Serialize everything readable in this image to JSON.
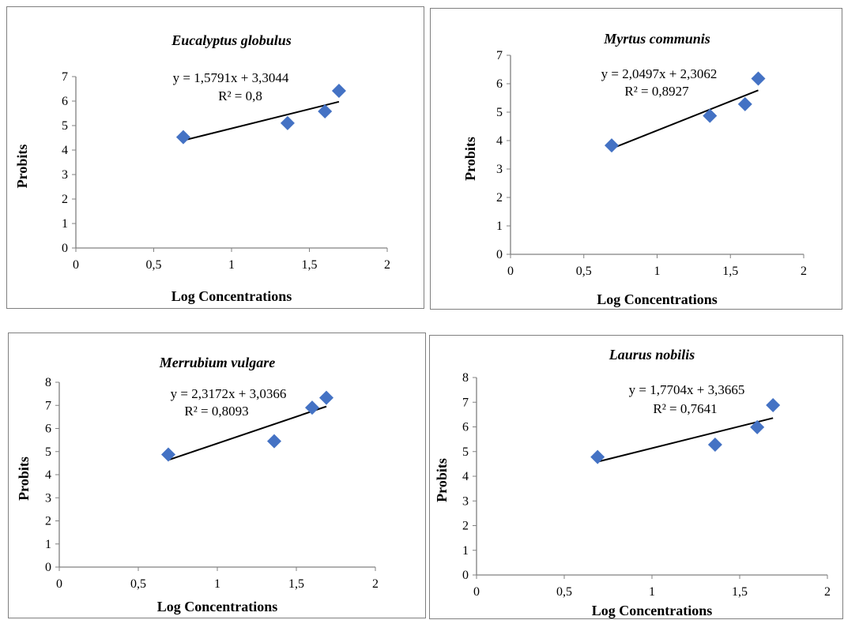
{
  "chart_data": [
    {
      "type": "scatter",
      "title": "Eucalyptus globulus",
      "xlabel": "Log Concentrations",
      "ylabel": "Probits",
      "xlim": [
        0,
        2
      ],
      "ylim": [
        0,
        7
      ],
      "xticks": [
        "0",
        "0,5",
        "1",
        "1,5",
        "2"
      ],
      "yticks": [
        "0",
        "1",
        "2",
        "3",
        "4",
        "5",
        "6",
        "7"
      ],
      "points": [
        [
          0.69,
          4.53
        ],
        [
          1.36,
          5.1
        ],
        [
          1.6,
          5.58
        ],
        [
          1.69,
          6.42
        ]
      ],
      "trendline": {
        "slope": 1.5791,
        "intercept": 3.3044,
        "x_range": [
          0.69,
          1.69
        ]
      },
      "equation": "y = 1,5791x + 3,3044",
      "r2": "R² = 0,8",
      "marker_color": "#4472c4"
    },
    {
      "type": "scatter",
      "title": "Myrtus communis",
      "xlabel": "Log Concentrations",
      "ylabel": "Probits",
      "xlim": [
        0,
        2
      ],
      "ylim": [
        0,
        7
      ],
      "xticks": [
        "0",
        "0,5",
        "1",
        "1,5",
        "2"
      ],
      "yticks": [
        "0",
        "1",
        "2",
        "3",
        "4",
        "5",
        "6",
        "7"
      ],
      "points": [
        [
          0.69,
          3.83
        ],
        [
          1.36,
          4.87
        ],
        [
          1.6,
          5.28
        ],
        [
          1.69,
          6.18
        ]
      ],
      "trendline": {
        "slope": 2.0497,
        "intercept": 2.3062,
        "x_range": [
          0.69,
          1.69
        ]
      },
      "equation": "y = 2,0497x + 2,3062",
      "r2": "R² = 0,8927",
      "marker_color": "#4472c4"
    },
    {
      "type": "scatter",
      "title": "Merrubium vulgare",
      "xlabel": "Log Concentrations",
      "ylabel": "Probits",
      "xlim": [
        0,
        2
      ],
      "ylim": [
        0,
        8
      ],
      "xticks": [
        "0",
        "0,5",
        "1",
        "1,5",
        "2"
      ],
      "yticks": [
        "0",
        "1",
        "2",
        "3",
        "4",
        "5",
        "6",
        "7",
        "8"
      ],
      "points": [
        [
          0.69,
          4.87
        ],
        [
          1.36,
          5.45
        ],
        [
          1.6,
          6.9
        ],
        [
          1.69,
          7.33
        ]
      ],
      "trendline": {
        "slope": 2.3172,
        "intercept": 3.0366,
        "x_range": [
          0.69,
          1.69
        ]
      },
      "equation": "y = 2,3172x + 3,0366",
      "r2": "R² = 0,8093",
      "marker_color": "#4472c4"
    },
    {
      "type": "scatter",
      "title": "Laurus nobilis",
      "xlabel": "Log Concentrations",
      "ylabel": "Probits",
      "xlim": [
        0,
        2
      ],
      "ylim": [
        0,
        8
      ],
      "xticks": [
        "0",
        "0,5",
        "1",
        "1,5",
        "2"
      ],
      "yticks": [
        "0",
        "1",
        "2",
        "3",
        "4",
        "5",
        "6",
        "7",
        "8"
      ],
      "points": [
        [
          0.69,
          4.78
        ],
        [
          1.36,
          5.28
        ],
        [
          1.6,
          5.99
        ],
        [
          1.69,
          6.88
        ]
      ],
      "trendline": {
        "slope": 1.7704,
        "intercept": 3.3665,
        "x_range": [
          0.69,
          1.69
        ]
      },
      "equation": "y = 1,7704x + 3,3665",
      "r2": "R² = 0,7641",
      "marker_color": "#4472c4"
    }
  ]
}
